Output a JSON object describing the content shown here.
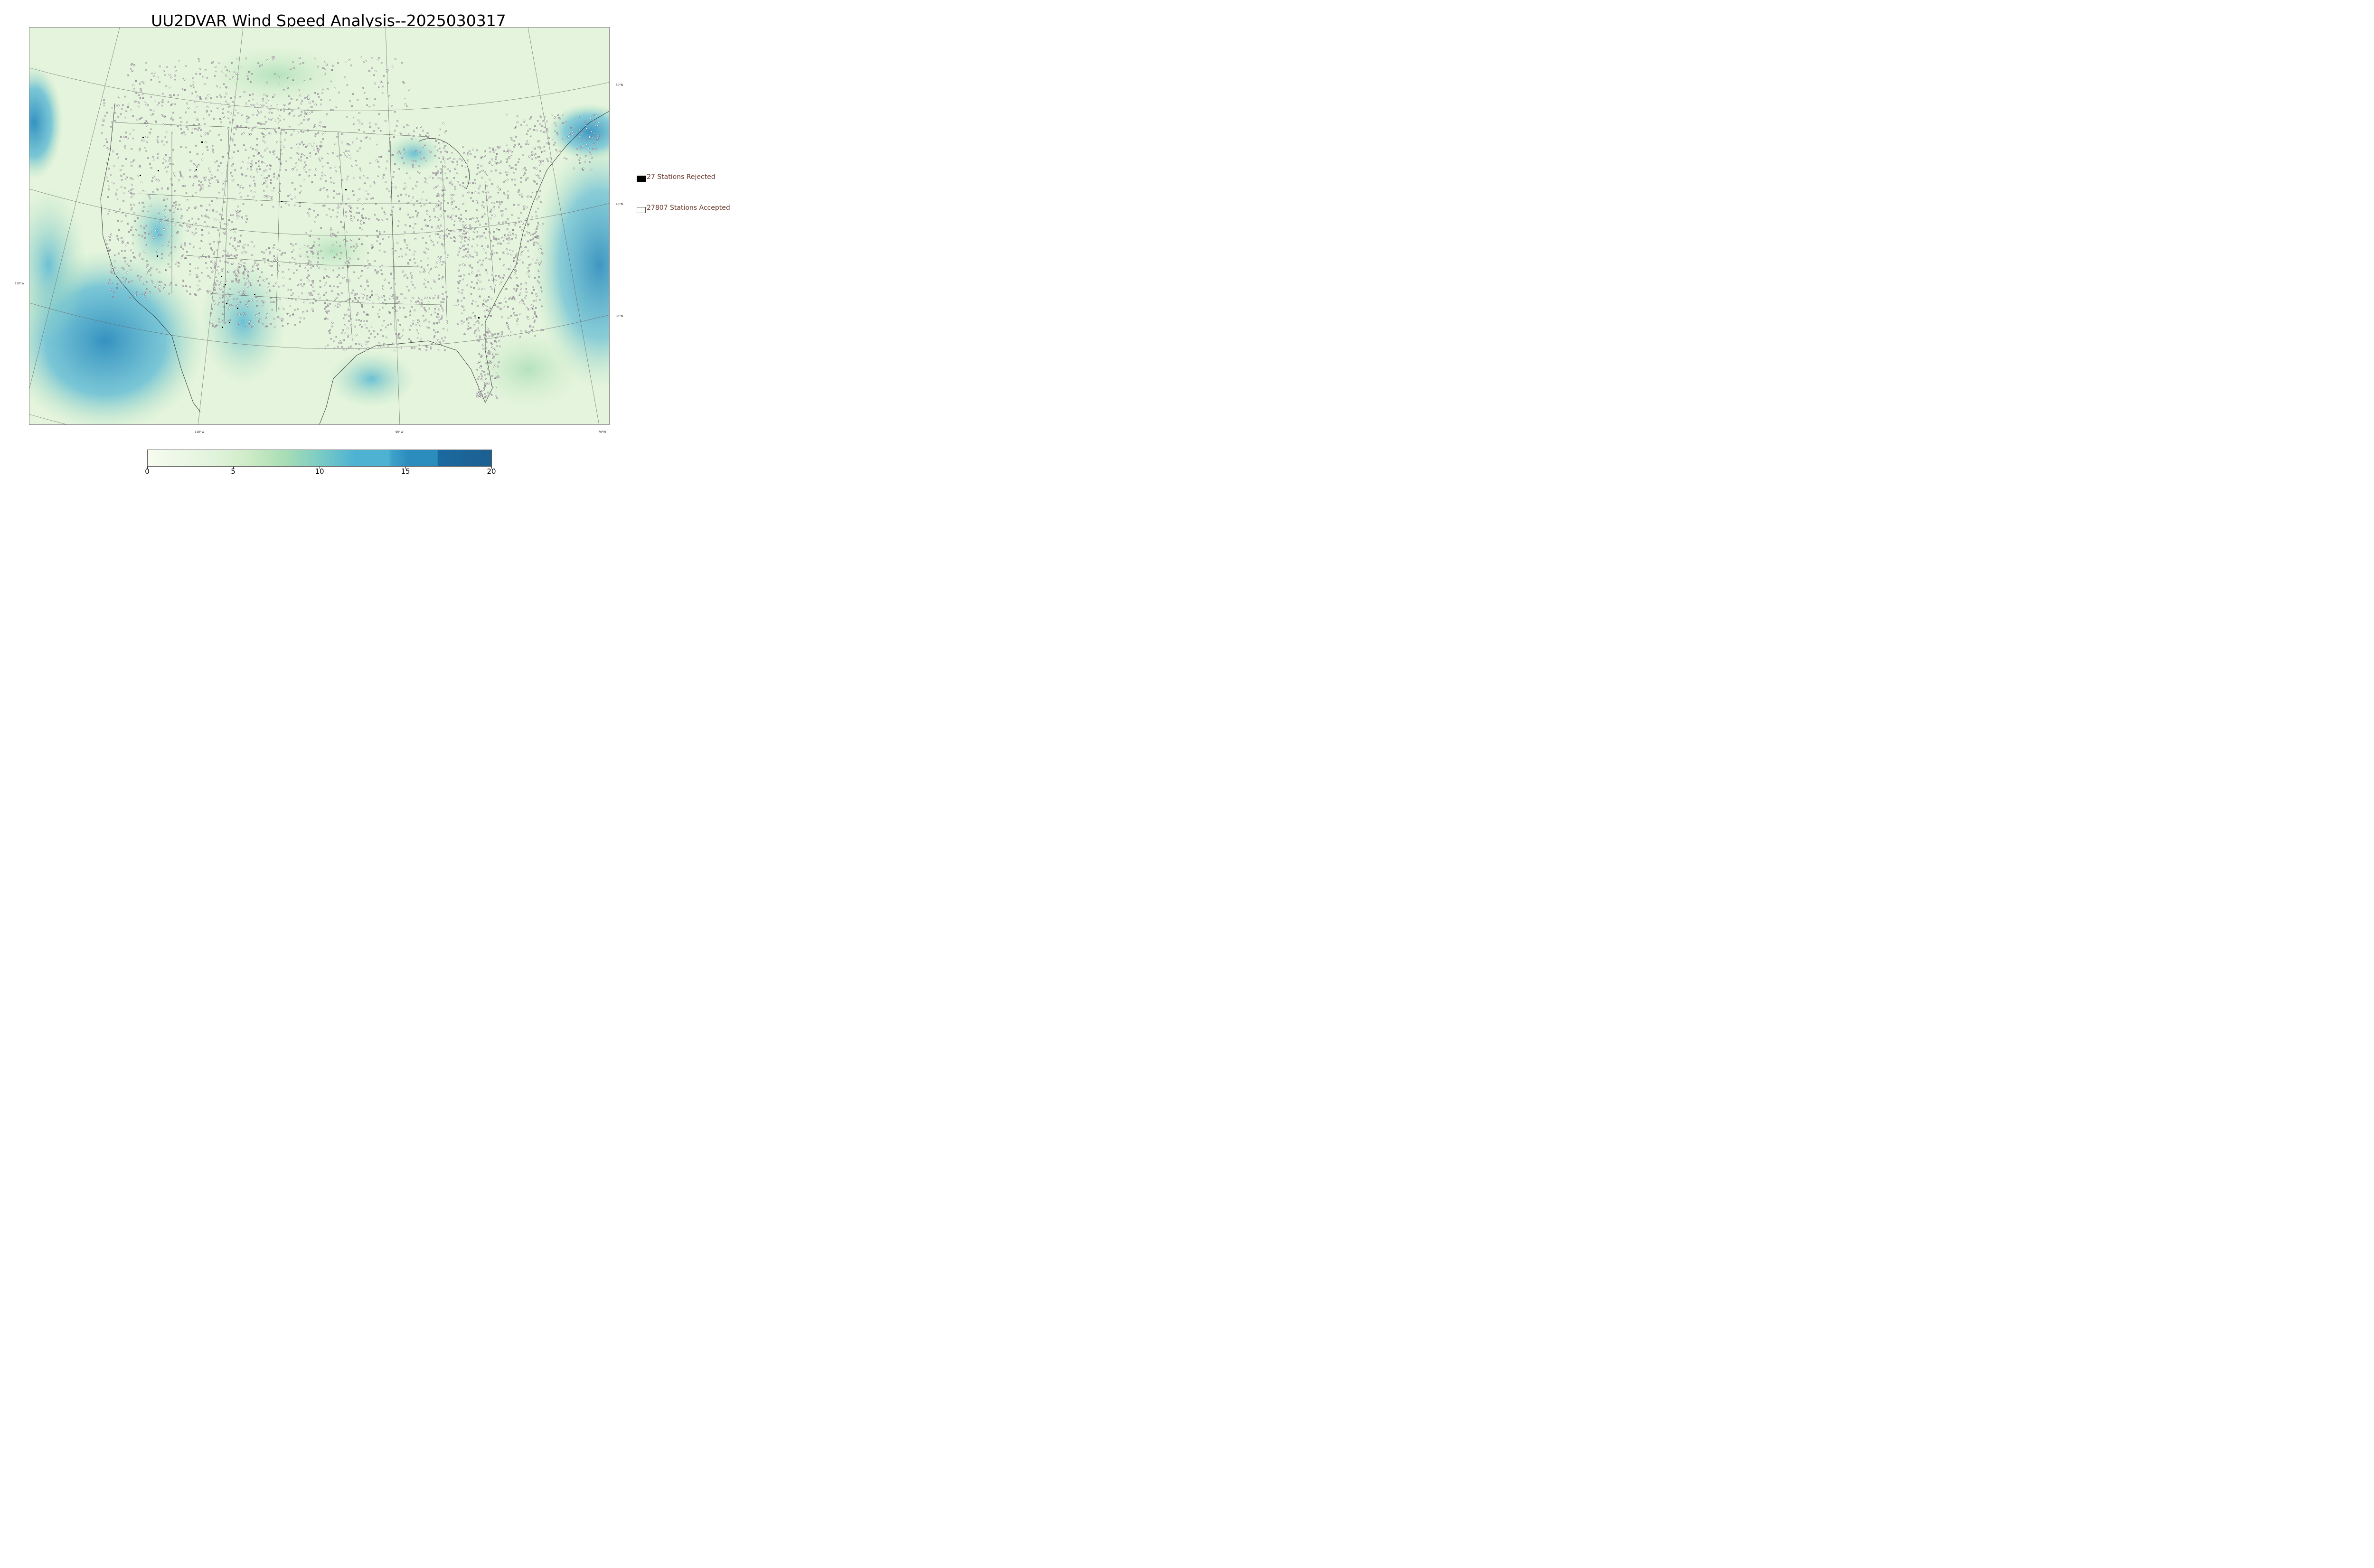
{
  "title": "UU2DVAR Wind Speed Analysis--2025030317",
  "map": {
    "latitude_labels": [
      "50°N",
      "40°N",
      "30°N"
    ],
    "longitude_labels": [
      "130°W",
      "110°W",
      "90°W",
      "70°W"
    ]
  },
  "legend": {
    "rejected": {
      "label": "27 Stations Rejected",
      "color": "#000000"
    },
    "accepted": {
      "label": "27807 Stations Accepted",
      "color": "#ffffff"
    }
  },
  "colorbar": {
    "ticks": [
      "0",
      "5",
      "10",
      "15",
      "20"
    ],
    "colors": [
      "#f7fcf0",
      "#e0f3db",
      "#ccebc5",
      "#a8ddb5",
      "#7bccc4",
      "#4eb3d3",
      "#2b8cbe",
      "#1a6aa0",
      "#1d5f91"
    ]
  }
}
